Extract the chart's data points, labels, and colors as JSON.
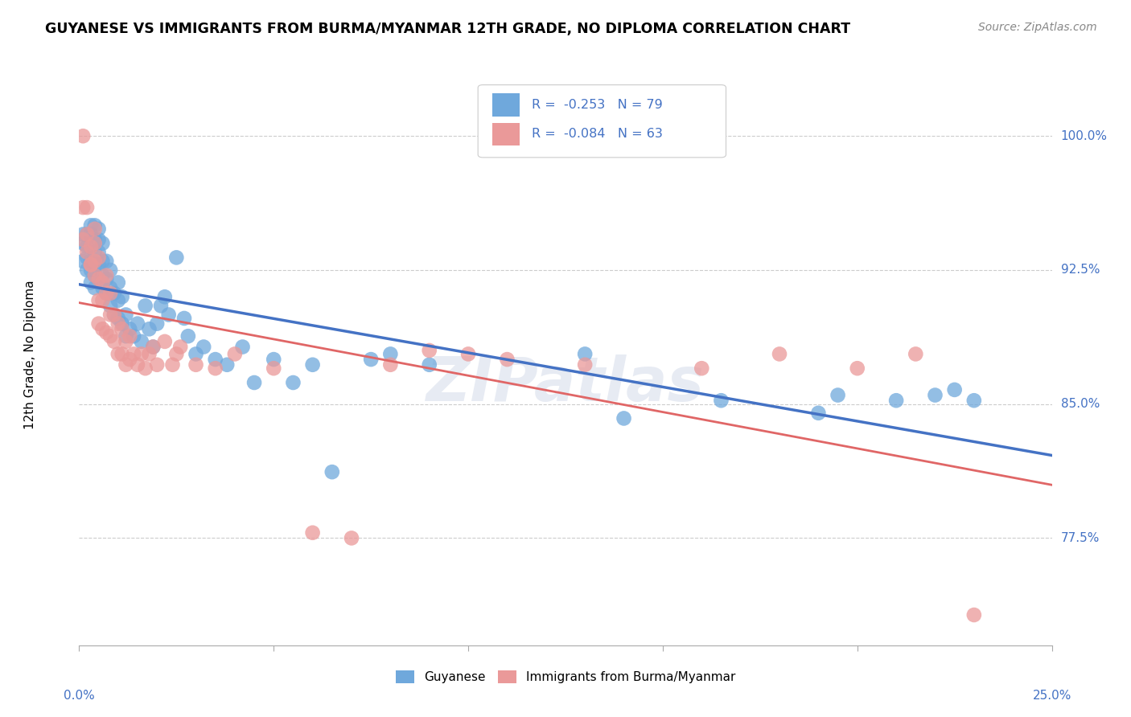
{
  "title": "GUYANESE VS IMMIGRANTS FROM BURMA/MYANMAR 12TH GRADE, NO DIPLOMA CORRELATION CHART",
  "source": "Source: ZipAtlas.com",
  "ylabel": "12th Grade, No Diploma",
  "ylabel_ticks": [
    "77.5%",
    "85.0%",
    "92.5%",
    "100.0%"
  ],
  "ylabel_values": [
    0.775,
    0.85,
    0.925,
    1.0
  ],
  "xlim": [
    0.0,
    0.25
  ],
  "ylim": [
    0.715,
    1.04
  ],
  "blue_R": -0.253,
  "blue_N": 79,
  "pink_R": -0.084,
  "pink_N": 63,
  "blue_color": "#6fa8dc",
  "pink_color": "#ea9999",
  "blue_line_color": "#4472c4",
  "pink_line_color": "#e06666",
  "watermark": "ZIPatlas",
  "legend_label_blue": "Guyanese",
  "legend_label_pink": "Immigrants from Burma/Myanmar",
  "blue_x": [
    0.001,
    0.001,
    0.001,
    0.002,
    0.002,
    0.002,
    0.002,
    0.003,
    0.003,
    0.003,
    0.003,
    0.003,
    0.003,
    0.004,
    0.004,
    0.004,
    0.004,
    0.004,
    0.004,
    0.005,
    0.005,
    0.005,
    0.005,
    0.005,
    0.006,
    0.006,
    0.006,
    0.006,
    0.007,
    0.007,
    0.007,
    0.008,
    0.008,
    0.008,
    0.009,
    0.009,
    0.01,
    0.01,
    0.01,
    0.011,
    0.011,
    0.012,
    0.012,
    0.013,
    0.014,
    0.015,
    0.016,
    0.017,
    0.018,
    0.019,
    0.02,
    0.021,
    0.022,
    0.023,
    0.025,
    0.027,
    0.028,
    0.03,
    0.032,
    0.035,
    0.038,
    0.042,
    0.045,
    0.05,
    0.055,
    0.06,
    0.065,
    0.075,
    0.08,
    0.09,
    0.13,
    0.14,
    0.165,
    0.19,
    0.195,
    0.21,
    0.22,
    0.225,
    0.23
  ],
  "blue_y": [
    0.93,
    0.94,
    0.945,
    0.925,
    0.932,
    0.938,
    0.945,
    0.918,
    0.925,
    0.93,
    0.938,
    0.945,
    0.95,
    0.915,
    0.922,
    0.928,
    0.935,
    0.942,
    0.95,
    0.92,
    0.928,
    0.935,
    0.942,
    0.948,
    0.915,
    0.922,
    0.93,
    0.94,
    0.912,
    0.92,
    0.93,
    0.905,
    0.915,
    0.925,
    0.9,
    0.912,
    0.898,
    0.908,
    0.918,
    0.895,
    0.91,
    0.888,
    0.9,
    0.892,
    0.888,
    0.895,
    0.885,
    0.905,
    0.892,
    0.882,
    0.895,
    0.905,
    0.91,
    0.9,
    0.932,
    0.898,
    0.888,
    0.878,
    0.882,
    0.875,
    0.872,
    0.882,
    0.862,
    0.875,
    0.862,
    0.872,
    0.812,
    0.875,
    0.878,
    0.872,
    0.878,
    0.842,
    0.852,
    0.845,
    0.855,
    0.852,
    0.855,
    0.858,
    0.852
  ],
  "pink_x": [
    0.001,
    0.001,
    0.001,
    0.002,
    0.002,
    0.002,
    0.003,
    0.003,
    0.003,
    0.004,
    0.004,
    0.004,
    0.004,
    0.005,
    0.005,
    0.005,
    0.005,
    0.006,
    0.006,
    0.006,
    0.007,
    0.007,
    0.007,
    0.008,
    0.008,
    0.008,
    0.009,
    0.009,
    0.01,
    0.01,
    0.011,
    0.011,
    0.012,
    0.012,
    0.013,
    0.013,
    0.014,
    0.015,
    0.016,
    0.017,
    0.018,
    0.019,
    0.02,
    0.022,
    0.024,
    0.025,
    0.026,
    0.03,
    0.035,
    0.04,
    0.05,
    0.06,
    0.07,
    0.08,
    0.09,
    0.1,
    0.11,
    0.13,
    0.16,
    0.18,
    0.2,
    0.215,
    0.23
  ],
  "pink_y": [
    0.96,
    1.0,
    0.942,
    0.935,
    0.945,
    0.96,
    0.928,
    0.938,
    0.928,
    0.922,
    0.93,
    0.94,
    0.948,
    0.895,
    0.908,
    0.92,
    0.932,
    0.892,
    0.908,
    0.918,
    0.89,
    0.912,
    0.922,
    0.888,
    0.9,
    0.912,
    0.885,
    0.9,
    0.878,
    0.895,
    0.878,
    0.892,
    0.872,
    0.885,
    0.875,
    0.888,
    0.878,
    0.872,
    0.878,
    0.87,
    0.878,
    0.882,
    0.872,
    0.885,
    0.872,
    0.878,
    0.882,
    0.872,
    0.87,
    0.878,
    0.87,
    0.778,
    0.775,
    0.872,
    0.88,
    0.878,
    0.875,
    0.872,
    0.87,
    0.878,
    0.87,
    0.878,
    0.732
  ]
}
